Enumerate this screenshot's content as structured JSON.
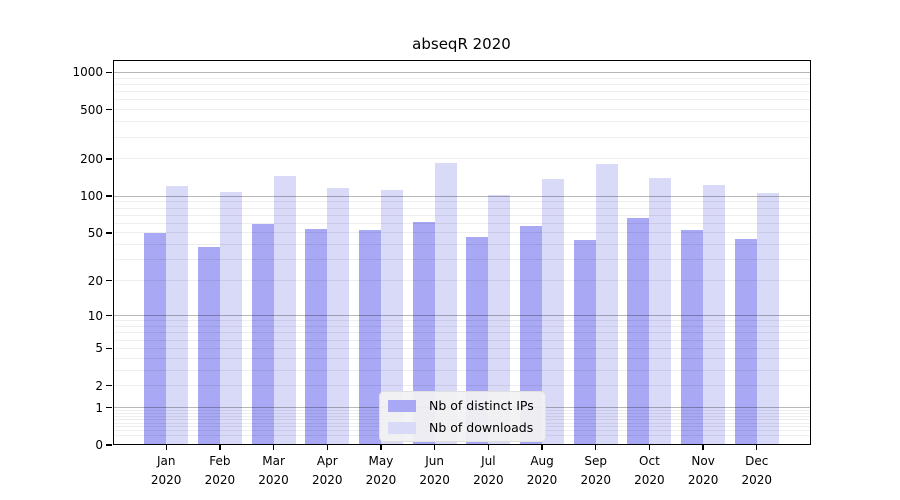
{
  "title": "abseqR 2020",
  "colors": {
    "distinct_ips_bar": "#a8a8f4",
    "downloads_bar": "#d9d9f8",
    "grid_major": "#b3b3b3",
    "grid_minor": "#ededed",
    "spine": "#000000",
    "legend_background": "#f2f2f2"
  },
  "legend": {
    "items": [
      {
        "label": "Nb of distinct IPs",
        "color": "#a8a8f4"
      },
      {
        "label": "Nb of downloads",
        "color": "#d9d9f8"
      }
    ]
  },
  "y_axis": {
    "tick_labels": [
      "0",
      "1",
      "2",
      "5",
      "10",
      "20",
      "50",
      "100",
      "200",
      "500",
      "1000"
    ],
    "tick_values": [
      0,
      1,
      2,
      5,
      10,
      20,
      50,
      100,
      200,
      500,
      1000
    ],
    "major_gridline_values": [
      1,
      10,
      100,
      1000
    ],
    "scale": "log1p",
    "max_value": 1259
  },
  "x_axis": {
    "months": [
      "Jan",
      "Feb",
      "Mar",
      "Apr",
      "May",
      "Jun",
      "Jul",
      "Aug",
      "Sep",
      "Oct",
      "Nov",
      "Dec"
    ],
    "year": "2020"
  },
  "chart_data": {
    "type": "bar",
    "title": "abseqR 2020",
    "categories": [
      "Jan 2020",
      "Feb 2020",
      "Mar 2020",
      "Apr 2020",
      "May 2020",
      "Jun 2020",
      "Jul 2020",
      "Aug 2020",
      "Sep 2020",
      "Oct 2020",
      "Nov 2020",
      "Dec 2020"
    ],
    "series": [
      {
        "name": "Nb of distinct IPs",
        "values": [
          50,
          38,
          59,
          54,
          53,
          62,
          46,
          57,
          44,
          66,
          53,
          45
        ]
      },
      {
        "name": "Nb of downloads",
        "values": [
          120,
          108,
          145,
          116,
          113,
          185,
          102,
          138,
          181,
          140,
          124,
          107
        ]
      }
    ],
    "yscale": "log1p",
    "yticks": [
      0,
      1,
      2,
      5,
      10,
      20,
      50,
      100,
      200,
      500,
      1000
    ],
    "ylim": [
      0,
      1259
    ],
    "xlabel": "",
    "ylabel": "",
    "grid": "horizontal",
    "legend_position": "lower center"
  }
}
